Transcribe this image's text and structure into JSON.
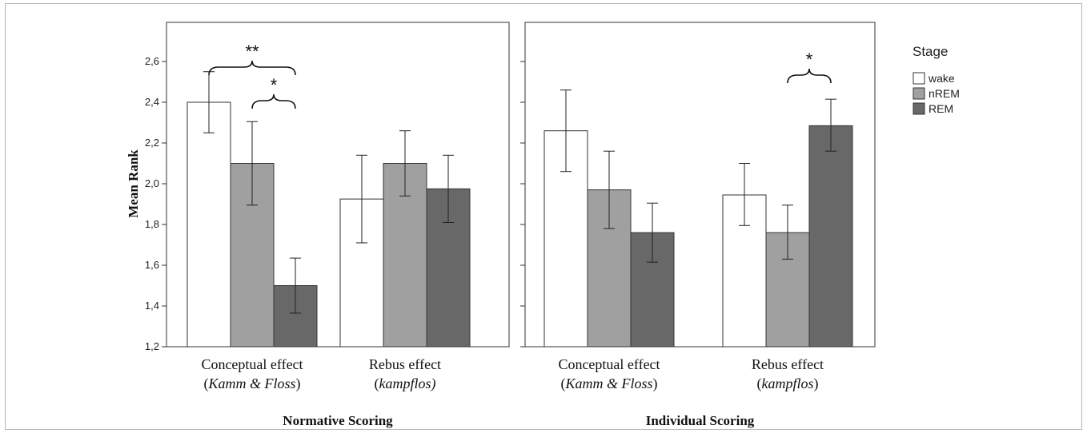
{
  "chart_data": {
    "type": "bar",
    "ylabel": "Mean Rank",
    "ylim": [
      1.2,
      2.6
    ],
    "yticks": [
      "1,2",
      "1,4",
      "1,6",
      "1,8",
      "2,0",
      "2,2",
      "2,4",
      "2,6"
    ],
    "legend": {
      "title": "Stage",
      "placement": "right",
      "entries": [
        {
          "name": "wake",
          "color": "#ffffff"
        },
        {
          "name": "nREM",
          "color": "#a0a0a0"
        },
        {
          "name": "REM",
          "color": "#686868"
        }
      ]
    },
    "panels": [
      {
        "title": "Normative Scoring",
        "categories": [
          {
            "line1": "Conceptual effect",
            "line2_open": "(",
            "line2_italic": "Kamm & Floss",
            "line2_close": ")"
          },
          {
            "line1": "Rebus effect",
            "line2_open": "(",
            "line2_italic": "kampflos)",
            "line2_close": ""
          }
        ],
        "series": [
          {
            "name": "wake",
            "values": [
              2.4,
              1.925
            ],
            "err_low": [
              2.25,
              1.71
            ],
            "err_high": [
              2.55,
              2.14
            ]
          },
          {
            "name": "nREM",
            "values": [
              2.1,
              2.1
            ],
            "err_low": [
              1.895,
              1.94
            ],
            "err_high": [
              2.305,
              2.26
            ]
          },
          {
            "name": "REM",
            "values": [
              1.5,
              1.975
            ],
            "err_low": [
              1.365,
              1.81
            ],
            "err_high": [
              1.635,
              2.14
            ]
          }
        ],
        "annotations": [
          {
            "label": "**",
            "from": [
              0,
              0
            ],
            "to": [
              0,
              2
            ]
          },
          {
            "label": "*",
            "from": [
              0,
              1
            ],
            "to": [
              0,
              2
            ]
          }
        ]
      },
      {
        "title": "Individual Scoring",
        "categories": [
          {
            "line1": "Conceptual effect",
            "line2_open": "(",
            "line2_italic": "Kamm & Floss",
            "line2_close": ")"
          },
          {
            "line1": "Rebus effect",
            "line2_open": "(",
            "line2_italic": "kampflos",
            "line2_close": ")"
          }
        ],
        "series": [
          {
            "name": "wake",
            "values": [
              2.26,
              1.945
            ],
            "err_low": [
              2.06,
              1.795
            ],
            "err_high": [
              2.46,
              2.1
            ]
          },
          {
            "name": "nREM",
            "values": [
              1.97,
              1.76
            ],
            "err_low": [
              1.78,
              1.63
            ],
            "err_high": [
              2.16,
              1.895
            ]
          },
          {
            "name": "REM",
            "values": [
              1.76,
              2.285
            ],
            "err_low": [
              1.615,
              2.16
            ],
            "err_high": [
              1.905,
              2.415
            ]
          }
        ],
        "annotations": [
          {
            "label": "*",
            "from": [
              1,
              1
            ],
            "to": [
              1,
              2
            ]
          }
        ]
      }
    ]
  }
}
